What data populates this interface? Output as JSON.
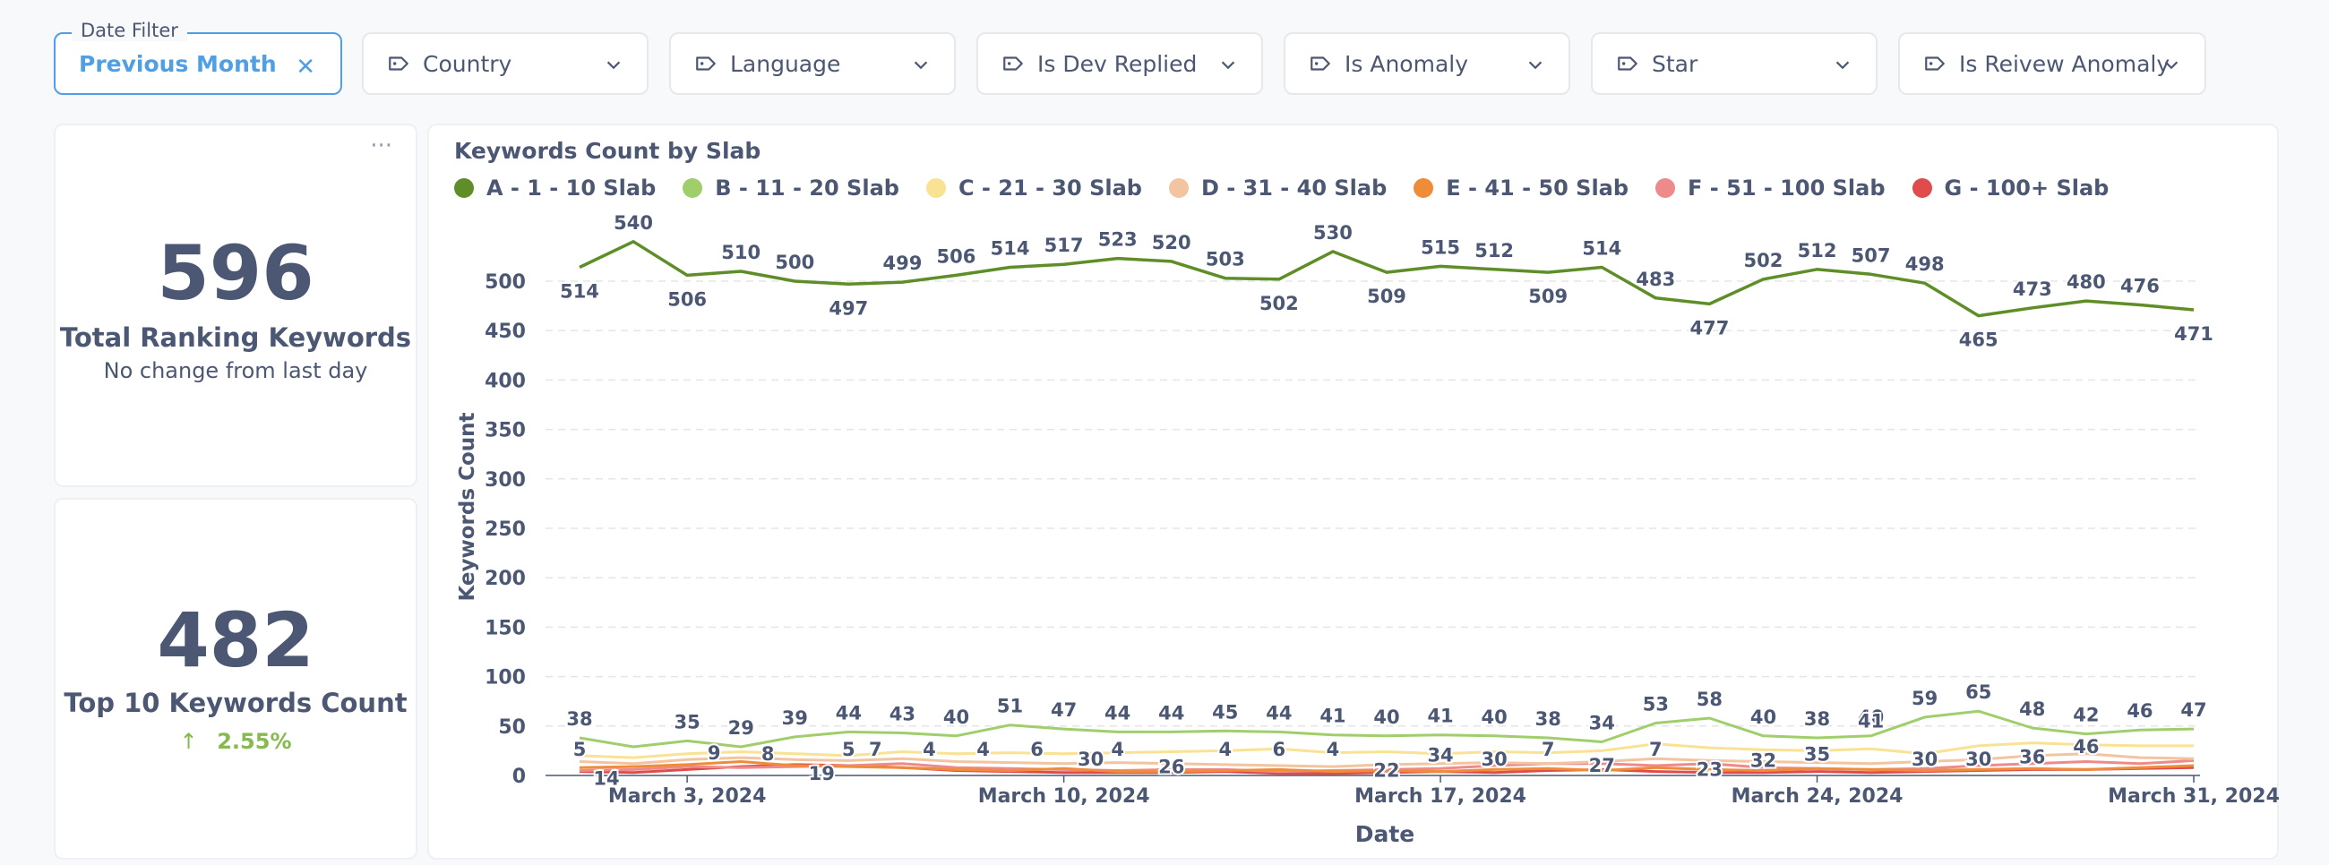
{
  "filters": [
    {
      "label": "Previous Month",
      "title": "Date Filter",
      "active": true
    },
    {
      "label": "Country"
    },
    {
      "label": "Language"
    },
    {
      "label": "Is Dev Replied"
    },
    {
      "label": "Is Anomaly"
    },
    {
      "label": "Star"
    },
    {
      "label": "Is Reivew Anomaly"
    }
  ],
  "card1": {
    "value": "596",
    "title": "Total Ranking Keywords",
    "subtitle": "No change from last day",
    "menu": "···"
  },
  "card2": {
    "value": "482",
    "title": "Top 10 Keywords Count",
    "change": "2.55%"
  },
  "chart_data": {
    "type": "line",
    "title": "Keywords Count by Slab",
    "xlabel": "Date",
    "ylabel": "Keywords Count",
    "ylim": [
      0,
      550
    ],
    "yticks": [
      0,
      50,
      100,
      150,
      200,
      250,
      300,
      350,
      400,
      450,
      500
    ],
    "xtick_labels": [
      "March 3, 2024",
      "March 10, 2024",
      "March 17, 2024",
      "March 24, 2024",
      "March 31, 2024"
    ],
    "xtick_index": [
      2,
      9,
      16,
      23,
      30
    ],
    "grid": true,
    "legend_position": "top",
    "series": [
      {
        "name": "A - 1 - 10 Slab",
        "color": "#5f8e29",
        "labeled": true,
        "values": [
          514,
          540,
          506,
          510,
          500,
          497,
          499,
          506,
          514,
          517,
          523,
          520,
          503,
          502,
          530,
          509,
          515,
          512,
          509,
          514,
          483,
          477,
          502,
          512,
          507,
          498,
          465,
          473,
          480,
          476,
          471
        ]
      },
      {
        "name": "B - 11 - 20 Slab",
        "color": "#9fce6b",
        "labeled": true,
        "values": [
          38,
          29,
          35,
          29,
          39,
          44,
          43,
          40,
          51,
          47,
          44,
          44,
          45,
          44,
          41,
          40,
          41,
          40,
          38,
          34,
          53,
          58,
          40,
          38,
          40,
          59,
          65,
          48,
          42,
          46,
          47
        ]
      },
      {
        "name": "C - 21 - 30 Slab",
        "color": "#f9e294",
        "labeled": false,
        "values": [
          20,
          18,
          22,
          24,
          22,
          20,
          24,
          22,
          23,
          22,
          23,
          24,
          25,
          27,
          23,
          24,
          22,
          24,
          23,
          25,
          32,
          28,
          26,
          25,
          27,
          22,
          30,
          33,
          31,
          30,
          30
        ]
      },
      {
        "name": "D - 31 - 40 Slab",
        "color": "#f2c4a0",
        "labeled": false,
        "values": [
          14,
          12,
          16,
          18,
          16,
          15,
          17,
          14,
          13,
          12,
          13,
          12,
          11,
          10,
          9,
          11,
          12,
          13,
          12,
          14,
          17,
          15,
          14,
          13,
          12,
          14,
          16,
          20,
          22,
          18,
          17
        ]
      },
      {
        "name": "E - 41 - 50 Slab",
        "color": "#ef8c3a",
        "labeled": false,
        "values": [
          8,
          9,
          11,
          14,
          10,
          9,
          8,
          6,
          5,
          7,
          4,
          4,
          5,
          6,
          4,
          5,
          4,
          6,
          7,
          5,
          8,
          6,
          5,
          7,
          6,
          5,
          6,
          7,
          6,
          8,
          10
        ]
      },
      {
        "name": "F - 51 - 100 Slab",
        "color": "#ee8a8a",
        "labeled": false,
        "values": [
          5,
          6,
          9,
          8,
          9,
          10,
          12,
          8,
          7,
          6,
          5,
          6,
          6,
          4,
          5,
          6,
          7,
          10,
          12,
          12,
          10,
          12,
          8,
          7,
          6,
          7,
          10,
          12,
          14,
          12,
          15
        ]
      },
      {
        "name": "G - 100+ Slab",
        "color": "#e04b4b",
        "labeled": false,
        "values": [
          4,
          3,
          6,
          9,
          11,
          10,
          8,
          5,
          4,
          3,
          3,
          3,
          4,
          2,
          2,
          3,
          4,
          3,
          5,
          6,
          4,
          3,
          3,
          4,
          3,
          4,
          5,
          6,
          6,
          7,
          8
        ]
      }
    ],
    "point_labels": [
      {
        "series": "B - 11 - 20 Slab",
        "index": 1,
        "value": 14
      },
      {
        "series": "E - 41 - 50 Slab",
        "index": 0,
        "value": 5
      },
      {
        "series": "F - 51 - 100 Slab",
        "index": 5,
        "value": 9
      },
      {
        "series": "F - 51 - 100 Slab",
        "index": 7,
        "value": 8
      },
      {
        "series": "B - 11 - 20 Slab",
        "index": 9,
        "value": 19
      },
      {
        "series": "E - 41 - 50 Slab",
        "index": 10,
        "value": 5
      },
      {
        "series": "E - 41 - 50 Slab",
        "index": 11,
        "value": 7
      },
      {
        "series": "E - 41 - 50 Slab",
        "index": 13,
        "value": 4
      },
      {
        "series": "E - 41 - 50 Slab",
        "index": 15,
        "value": 4
      },
      {
        "series": "E - 41 - 50 Slab",
        "index": 17,
        "value": 6
      },
      {
        "series": "C - 21 - 30 Slab",
        "index": 19,
        "value": 30
      },
      {
        "series": "E - 41 - 50 Slab",
        "index": 20,
        "value": 4
      },
      {
        "series": "B - 11 - 20 Slab",
        "index": 22,
        "value": 26
      },
      {
        "series": "E - 41 - 50 Slab",
        "index": 24,
        "value": 4
      },
      {
        "series": "E - 41 - 50 Slab",
        "index": 26,
        "value": 6
      },
      {
        "series": "E - 41 - 50 Slab",
        "index": 28,
        "value": 4
      },
      {
        "series": "B - 11 - 20 Slab",
        "index": 30,
        "value": 22
      },
      {
        "series": "C - 21 - 30 Slab",
        "index": 32,
        "value": 34
      },
      {
        "series": "C - 21 - 30 Slab",
        "index": 34,
        "value": 30
      },
      {
        "series": "E - 41 - 50 Slab",
        "index": 36,
        "value": 7
      },
      {
        "series": "B - 11 - 20 Slab",
        "index": 38,
        "value": 27
      },
      {
        "series": "E - 41 - 50 Slab",
        "index": 40,
        "value": 7
      },
      {
        "series": "B - 11 - 20 Slab",
        "index": 42,
        "value": 23
      },
      {
        "series": "B - 11 - 20 Slab",
        "index": 44,
        "value": 32
      },
      {
        "series": "C - 21 - 30 Slab",
        "index": 46,
        "value": 35
      },
      {
        "series": "F - 51 - 100 Slab",
        "index": 48,
        "value": 41
      },
      {
        "series": "C - 21 - 30 Slab",
        "index": 50,
        "value": 30
      },
      {
        "series": "C - 21 - 30 Slab",
        "index": 52,
        "value": 30
      },
      {
        "series": "B - 11 - 20 Slab",
        "index": 54,
        "value": 36
      },
      {
        "series": "B - 11 - 20 Slab",
        "index": 56,
        "value": 46
      }
    ]
  }
}
